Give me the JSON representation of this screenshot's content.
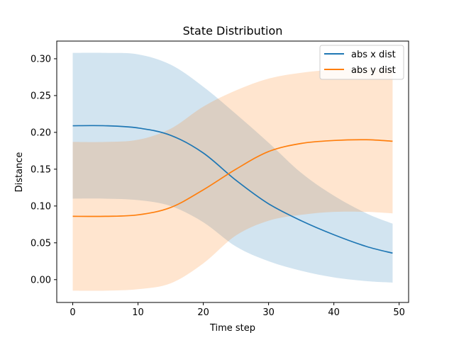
{
  "chart_data": {
    "type": "line",
    "title": "State Distribution",
    "xlabel": "Time step",
    "ylabel": "Distance",
    "xlim": [
      -2.45,
      51.45
    ],
    "ylim": [
      -0.031,
      0.324
    ],
    "xticks": [
      0,
      10,
      20,
      30,
      40,
      50
    ],
    "yticks": [
      0.0,
      0.05,
      0.1,
      0.15,
      0.2,
      0.25,
      0.3
    ],
    "ytick_labels": [
      "0.00",
      "0.05",
      "0.10",
      "0.15",
      "0.20",
      "0.25",
      "0.30"
    ],
    "grid": false,
    "legend": "top-right",
    "x": [
      0,
      5,
      10,
      15,
      20,
      25,
      30,
      35,
      40,
      45,
      49
    ],
    "series": [
      {
        "name": "abs x dist",
        "color": "#1f77b4",
        "values": [
          0.209,
          0.209,
          0.206,
          0.196,
          0.172,
          0.135,
          0.103,
          0.08,
          0.061,
          0.045,
          0.036
        ],
        "lower": [
          0.11,
          0.11,
          0.108,
          0.1,
          0.078,
          0.045,
          0.025,
          0.012,
          0.003,
          -0.002,
          -0.004
        ],
        "upper": [
          0.308,
          0.308,
          0.306,
          0.292,
          0.262,
          0.225,
          0.186,
          0.145,
          0.114,
          0.09,
          0.076
        ]
      },
      {
        "name": "abs y dist",
        "color": "#ff7f0e",
        "values": [
          0.086,
          0.086,
          0.088,
          0.098,
          0.122,
          0.15,
          0.174,
          0.185,
          0.189,
          0.19,
          0.188
        ],
        "lower": [
          -0.015,
          -0.015,
          -0.013,
          -0.005,
          0.022,
          0.06,
          0.08,
          0.088,
          0.092,
          0.092,
          0.09
        ],
        "upper": [
          0.187,
          0.187,
          0.19,
          0.205,
          0.235,
          0.257,
          0.273,
          0.281,
          0.285,
          0.286,
          0.286
        ]
      }
    ]
  }
}
